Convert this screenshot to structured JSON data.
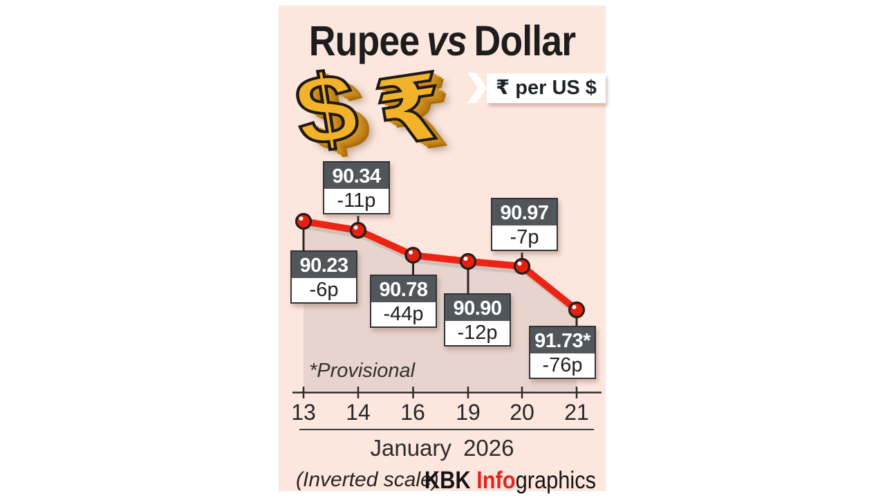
{
  "header": {
    "title_rupee": "Rupee",
    "title_vs": "vs",
    "title_dollar": "Dollar"
  },
  "symbols": {
    "dollar_glyph": "$",
    "rupee_glyph": "₹"
  },
  "ribbon": {
    "label": "₹ per US $"
  },
  "chart_data": {
    "type": "line",
    "title": "Rupee vs Dollar",
    "subtitle": "₹ per US $",
    "inverted_scale": true,
    "categories": [
      "13",
      "14",
      "16",
      "19",
      "20",
      "21"
    ],
    "x_axis_title": "January 2026",
    "series": [
      {
        "name": "₹ per US $",
        "values": [
          90.23,
          90.34,
          90.78,
          90.9,
          90.97,
          91.73
        ]
      }
    ],
    "points": [
      {
        "date": "13",
        "value": 90.23,
        "value_label": "90.23",
        "change_label": "-6p",
        "label_side": "below"
      },
      {
        "date": "14",
        "value": 90.34,
        "value_label": "90.34",
        "change_label": "-11p",
        "label_side": "above"
      },
      {
        "date": "16",
        "value": 90.78,
        "value_label": "90.78",
        "change_label": "-44p",
        "label_side": "below"
      },
      {
        "date": "19",
        "value": 90.9,
        "value_label": "90.90",
        "change_label": "-12p",
        "label_side": "below"
      },
      {
        "date": "20",
        "value": 90.97,
        "value_label": "90.97",
        "change_label": "-7p",
        "label_side": "above"
      },
      {
        "date": "21",
        "value": 91.73,
        "value_label": "91.73*",
        "change_label": "-76p",
        "label_side": "below"
      }
    ],
    "legend": "none",
    "grid": false
  },
  "footer": {
    "provisional_note": "*Provisional",
    "month_label": "January 2026",
    "scale_note": "(Inverted scale)",
    "credit_bold": "KBK ",
    "credit_accent": "Info",
    "credit_rest": "graphics"
  },
  "colors": {
    "panel_bg": "#fce6de",
    "area_fill": "#e7d4cc",
    "accent_red": "#ed2414",
    "marker_red": "#e6200f",
    "marker_outline": "#241d19",
    "line_shadow": "#cdc2bb",
    "label_box_dark": "#50565a",
    "label_box_border": "#2e3437",
    "axis_ink": "#2c2c2c",
    "gold": "#f2b32a",
    "credit_red": "#e8231a",
    "ink": "#1d1d1d"
  }
}
